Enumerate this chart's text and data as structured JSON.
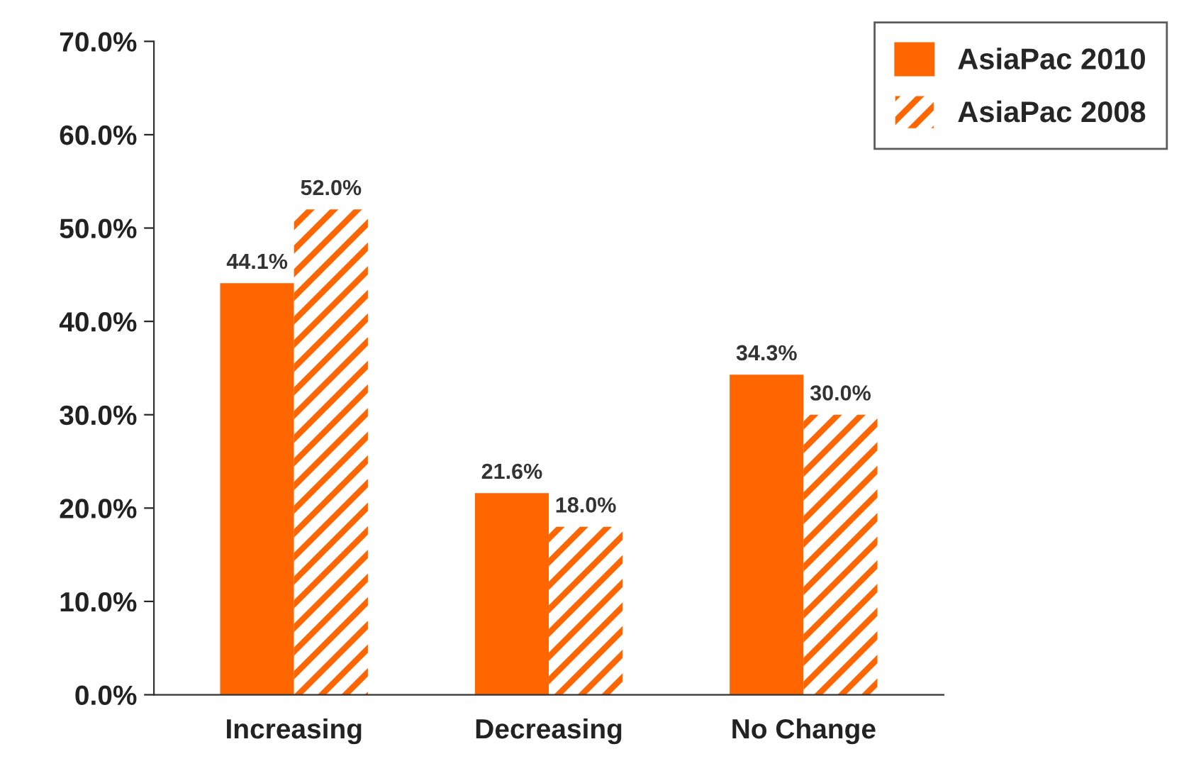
{
  "chart_data": {
    "type": "bar",
    "categories": [
      "Increasing",
      "Decreasing",
      "No Change"
    ],
    "series": [
      {
        "name": "AsiaPac 2010",
        "color": "#ff6600",
        "values": [
          44.1,
          21.6,
          34.3
        ],
        "value_labels": [
          "44.1%",
          "21.6%",
          "34.3%"
        ]
      },
      {
        "name": "AsiaPac 2008",
        "color": "#ff6600",
        "values": [
          52.0,
          18.0,
          30.0
        ],
        "value_labels": [
          "52.0%",
          "18.0%",
          "30.0%"
        ]
      }
    ],
    "ylim": [
      0,
      70
    ],
    "yticks": [
      {
        "value": 0,
        "label": "0.0%"
      },
      {
        "value": 10,
        "label": "10.0%"
      },
      {
        "value": 20,
        "label": "20.0%"
      },
      {
        "value": 30,
        "label": "30.0%"
      },
      {
        "value": 40,
        "label": "40.0%"
      },
      {
        "value": 50,
        "label": "50.0%"
      },
      {
        "value": 60,
        "label": "60.0%"
      },
      {
        "value": 70,
        "label": "70.0%"
      }
    ],
    "grid": false,
    "legend": "top right"
  }
}
